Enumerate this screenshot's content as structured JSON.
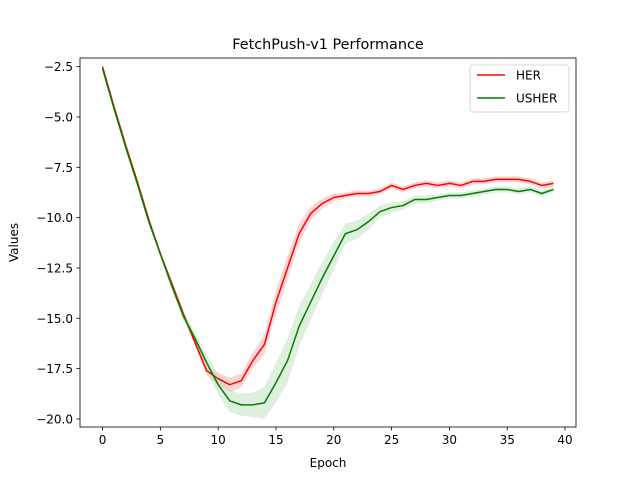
{
  "chart_data": {
    "type": "line",
    "title": "FetchPush-v1 Performance",
    "xlabel": "Epoch",
    "ylabel": "Values",
    "xlim": [
      -1.95,
      40.95
    ],
    "ylim": [
      -20.4,
      -2.07
    ],
    "xticks": [
      0,
      5,
      10,
      15,
      20,
      25,
      30,
      35,
      40
    ],
    "xtick_labels": [
      "0",
      "5",
      "10",
      "15",
      "20",
      "25",
      "30",
      "35",
      "40"
    ],
    "yticks": [
      -2.5,
      -5.0,
      -7.5,
      -10.0,
      -12.5,
      -15.0,
      -17.5,
      -20.0
    ],
    "ytick_labels": [
      "−2.5",
      "−5.0",
      "−7.5",
      "−10.0",
      "−12.5",
      "−15.0",
      "−17.5",
      "−20.0"
    ],
    "grid": false,
    "legend_position": "top-right",
    "x": [
      0,
      1,
      2,
      3,
      4,
      5,
      6,
      7,
      8,
      9,
      10,
      11,
      12,
      13,
      14,
      15,
      16,
      17,
      18,
      19,
      20,
      21,
      22,
      23,
      24,
      25,
      26,
      27,
      28,
      29,
      30,
      31,
      32,
      33,
      34,
      35,
      36,
      37,
      38,
      39
    ],
    "series": [
      {
        "name": "HER",
        "color": "#ff0000",
        "band_color": "#f4a5a5",
        "values": [
          -2.5,
          -4.5,
          -6.4,
          -8.2,
          -10.1,
          -11.8,
          -13.3,
          -14.8,
          -16.2,
          -17.6,
          -18.0,
          -18.3,
          -18.1,
          -17.1,
          -16.3,
          -14.2,
          -12.5,
          -10.8,
          -9.8,
          -9.3,
          -9.0,
          -8.9,
          -8.8,
          -8.8,
          -8.7,
          -8.4,
          -8.6,
          -8.4,
          -8.3,
          -8.4,
          -8.3,
          -8.4,
          -8.2,
          -8.2,
          -8.1,
          -8.1,
          -8.1,
          -8.2,
          -8.4,
          -8.3
        ],
        "band": [
          0.1,
          0.1,
          0.15,
          0.15,
          0.15,
          0.15,
          0.2,
          0.2,
          0.2,
          0.25,
          0.3,
          0.35,
          0.35,
          0.4,
          0.5,
          0.6,
          0.6,
          0.5,
          0.35,
          0.25,
          0.2,
          0.15,
          0.15,
          0.15,
          0.15,
          0.15,
          0.15,
          0.15,
          0.15,
          0.15,
          0.15,
          0.15,
          0.15,
          0.15,
          0.15,
          0.15,
          0.15,
          0.15,
          0.15,
          0.15
        ]
      },
      {
        "name": "USHER",
        "color": "#008000",
        "band_color": "#b5dcb5",
        "values": [
          -2.6,
          -4.6,
          -6.5,
          -8.3,
          -10.2,
          -11.8,
          -13.4,
          -14.9,
          -16.0,
          -17.2,
          -18.3,
          -19.1,
          -19.3,
          -19.3,
          -19.2,
          -18.2,
          -17.1,
          -15.4,
          -14.2,
          -13.0,
          -11.9,
          -10.8,
          -10.6,
          -10.2,
          -9.7,
          -9.5,
          -9.4,
          -9.1,
          -9.1,
          -9.0,
          -8.9,
          -8.9,
          -8.8,
          -8.7,
          -8.6,
          -8.6,
          -8.7,
          -8.6,
          -8.8,
          -8.6
        ],
        "band": [
          0.1,
          0.1,
          0.15,
          0.15,
          0.15,
          0.15,
          0.2,
          0.2,
          0.3,
          0.4,
          0.5,
          0.55,
          0.55,
          0.6,
          0.8,
          1.0,
          1.1,
          1.0,
          0.9,
          0.8,
          0.7,
          0.5,
          0.45,
          0.4,
          0.3,
          0.25,
          0.2,
          0.2,
          0.2,
          0.15,
          0.15,
          0.15,
          0.15,
          0.15,
          0.15,
          0.15,
          0.15,
          0.15,
          0.15,
          0.15
        ]
      }
    ]
  }
}
